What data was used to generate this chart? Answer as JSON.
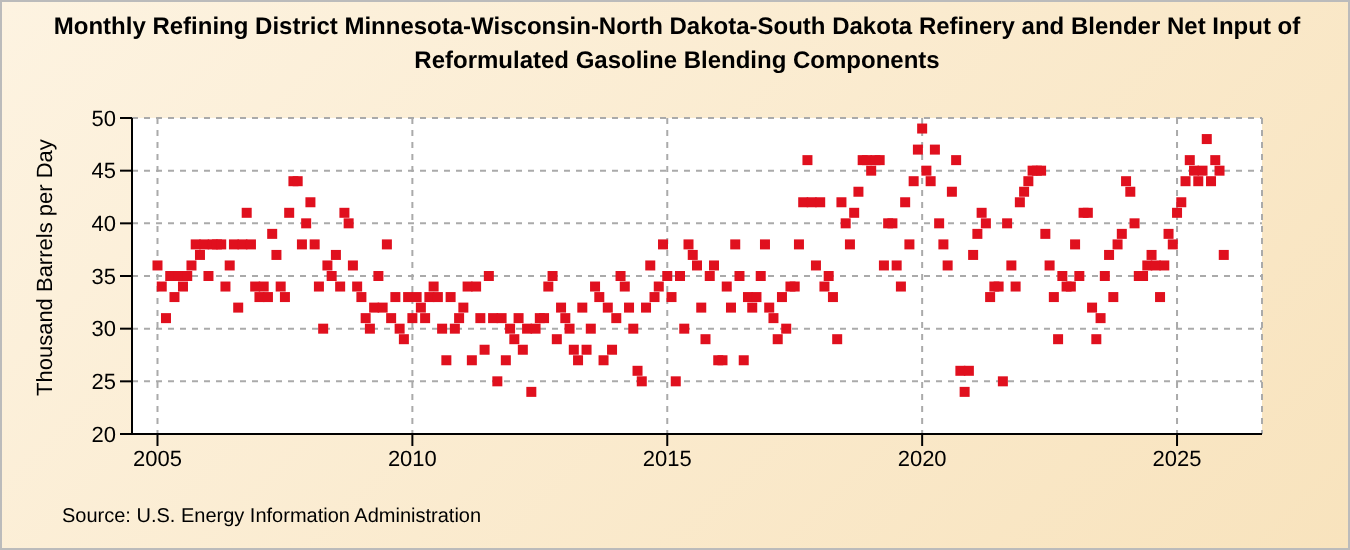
{
  "chart_data": {
    "type": "scatter",
    "title": "Monthly Refining District Minnesota-Wisconsin-North Dakota-South Dakota Refinery and Blender Net Input of Reformulated Gasoline Blending Components",
    "ylabel": "Thousand Barrels per Day",
    "annotations": [
      "Source: U.S. Energy Information Administration"
    ],
    "x": [
      "2005-01",
      "2005-02",
      "2005-03",
      "2005-04",
      "2005-05",
      "2005-06",
      "2005-07",
      "2005-08",
      "2005-09",
      "2005-10",
      "2005-11",
      "2005-12",
      "2006-01",
      "2006-02",
      "2006-03",
      "2006-04",
      "2006-05",
      "2006-06",
      "2006-07",
      "2006-08",
      "2006-09",
      "2006-10",
      "2006-11",
      "2006-12",
      "2007-01",
      "2007-02",
      "2007-03",
      "2007-04",
      "2007-05",
      "2007-06",
      "2007-07",
      "2007-08",
      "2007-09",
      "2007-10",
      "2007-11",
      "2007-12",
      "2008-01",
      "2008-02",
      "2008-03",
      "2008-04",
      "2008-05",
      "2008-06",
      "2008-07",
      "2008-08",
      "2008-09",
      "2008-10",
      "2008-11",
      "2008-12",
      "2009-01",
      "2009-02",
      "2009-03",
      "2009-04",
      "2009-05",
      "2009-06",
      "2009-07",
      "2009-08",
      "2009-09",
      "2009-10",
      "2009-11",
      "2009-12",
      "2010-01",
      "2010-02",
      "2010-03",
      "2010-04",
      "2010-05",
      "2010-06",
      "2010-07",
      "2010-08",
      "2010-09",
      "2010-10",
      "2010-11",
      "2010-12",
      "2011-01",
      "2011-02",
      "2011-03",
      "2011-04",
      "2011-05",
      "2011-06",
      "2011-07",
      "2011-08",
      "2011-09",
      "2011-10",
      "2011-11",
      "2011-12",
      "2012-01",
      "2012-02",
      "2012-03",
      "2012-04",
      "2012-05",
      "2012-06",
      "2012-07",
      "2012-08",
      "2012-09",
      "2012-10",
      "2012-11",
      "2012-12",
      "2013-01",
      "2013-02",
      "2013-03",
      "2013-04",
      "2013-05",
      "2013-06",
      "2013-07",
      "2013-08",
      "2013-09",
      "2013-10",
      "2013-11",
      "2013-12",
      "2014-01",
      "2014-02",
      "2014-03",
      "2014-04",
      "2014-05",
      "2014-06",
      "2014-07",
      "2014-08",
      "2014-09",
      "2014-10",
      "2014-11",
      "2014-12",
      "2015-01",
      "2015-02",
      "2015-03",
      "2015-04",
      "2015-05",
      "2015-06",
      "2015-07",
      "2015-08",
      "2015-09",
      "2015-10",
      "2015-11",
      "2015-12",
      "2016-01",
      "2016-02",
      "2016-03",
      "2016-04",
      "2016-05",
      "2016-06",
      "2016-07",
      "2016-08",
      "2016-09",
      "2016-10",
      "2016-11",
      "2016-12",
      "2017-01",
      "2017-02",
      "2017-03",
      "2017-04",
      "2017-05",
      "2017-06",
      "2017-07",
      "2017-08",
      "2017-09",
      "2017-10",
      "2017-11",
      "2017-12",
      "2018-01",
      "2018-02",
      "2018-03",
      "2018-04",
      "2018-05",
      "2018-06",
      "2018-07",
      "2018-08",
      "2018-09",
      "2018-10",
      "2018-11",
      "2018-12",
      "2019-01",
      "2019-02",
      "2019-03",
      "2019-04",
      "2019-05",
      "2019-06",
      "2019-07",
      "2019-08",
      "2019-09",
      "2019-10",
      "2019-11",
      "2019-12",
      "2020-01",
      "2020-02",
      "2020-03",
      "2020-04",
      "2020-05",
      "2020-06",
      "2020-07",
      "2020-08",
      "2020-09",
      "2020-10",
      "2020-11",
      "2020-12",
      "2021-01",
      "2021-02",
      "2021-03",
      "2021-04",
      "2021-05",
      "2021-06",
      "2021-07",
      "2021-08",
      "2021-09",
      "2021-10",
      "2021-11",
      "2021-12",
      "2022-01",
      "2022-02",
      "2022-03",
      "2022-04",
      "2022-05",
      "2022-06",
      "2022-07",
      "2022-08",
      "2022-09",
      "2022-10",
      "2022-11",
      "2022-12",
      "2023-01",
      "2023-02",
      "2023-03",
      "2023-04",
      "2023-05",
      "2023-06",
      "2023-07",
      "2023-08",
      "2023-09",
      "2023-10",
      "2023-11",
      "2023-12",
      "2024-01",
      "2024-02",
      "2024-03",
      "2024-04",
      "2024-05",
      "2024-06",
      "2024-07",
      "2024-08",
      "2024-09",
      "2024-10",
      "2024-11",
      "2024-12",
      "2025-01",
      "2025-02",
      "2025-03",
      "2025-04",
      "2025-05",
      "2025-06",
      "2025-07",
      "2025-08",
      "2025-09",
      "2025-10",
      "2025-11",
      "2025-12"
    ],
    "values": [
      36,
      34,
      31,
      35,
      33,
      35,
      34,
      35,
      36,
      38,
      37,
      38,
      35,
      38,
      38,
      38,
      34,
      36,
      38,
      32,
      38,
      41,
      38,
      34,
      33,
      34,
      33,
      39,
      37,
      34,
      33,
      41,
      44,
      44,
      38,
      40,
      42,
      38,
      34,
      30,
      36,
      35,
      37,
      34,
      41,
      40,
      36,
      34,
      33,
      31,
      30,
      32,
      35,
      32,
      38,
      31,
      33,
      30,
      29,
      33,
      31,
      33,
      32,
      31,
      33,
      34,
      33,
      30,
      27,
      33,
      30,
      31,
      32,
      34,
      27,
      34,
      31,
      28,
      35,
      31,
      25,
      31,
      27,
      30,
      29,
      31,
      28,
      30,
      24,
      30,
      31,
      31,
      34,
      35,
      29,
      32,
      31,
      30,
      28,
      27,
      32,
      28,
      30,
      34,
      33,
      27,
      32,
      28,
      31,
      35,
      34,
      32,
      30,
      26,
      25,
      32,
      36,
      33,
      34,
      38,
      35,
      33,
      25,
      35,
      30,
      38,
      37,
      36,
      32,
      29,
      35,
      36,
      27,
      27,
      34,
      32,
      38,
      35,
      27,
      33,
      32,
      33,
      35,
      38,
      32,
      31,
      29,
      33,
      30,
      34,
      34,
      38,
      42,
      46,
      42,
      36,
      42,
      34,
      35,
      33,
      29,
      42,
      40,
      38,
      41,
      43,
      46,
      46,
      45,
      46,
      46,
      36,
      40,
      40,
      36,
      34,
      42,
      38,
      44,
      47,
      49,
      45,
      44,
      47,
      40,
      38,
      36,
      43,
      46,
      26,
      24,
      26,
      37,
      39,
      41,
      40,
      33,
      34,
      34,
      25,
      40,
      36,
      34,
      42,
      43,
      44,
      45,
      45,
      45,
      39,
      36,
      33,
      29,
      35,
      34,
      34,
      38,
      35,
      41,
      41,
      32,
      29,
      31,
      35,
      37,
      33,
      38,
      39,
      44,
      43,
      40,
      35,
      35,
      36,
      37,
      36,
      33,
      36,
      39,
      38,
      41,
      42,
      44,
      46,
      45,
      44,
      45,
      48,
      44,
      46,
      45,
      37
    ],
    "color": "#e0101e",
    "marker": "square",
    "grid": true,
    "xlim": [
      "2004-07",
      "2026-09"
    ],
    "xticks": [
      "2005",
      "2010",
      "2015",
      "2020",
      "2025"
    ],
    "ylim": [
      20,
      50
    ],
    "yticks": [
      20,
      25,
      30,
      35,
      40,
      45,
      50
    ]
  }
}
